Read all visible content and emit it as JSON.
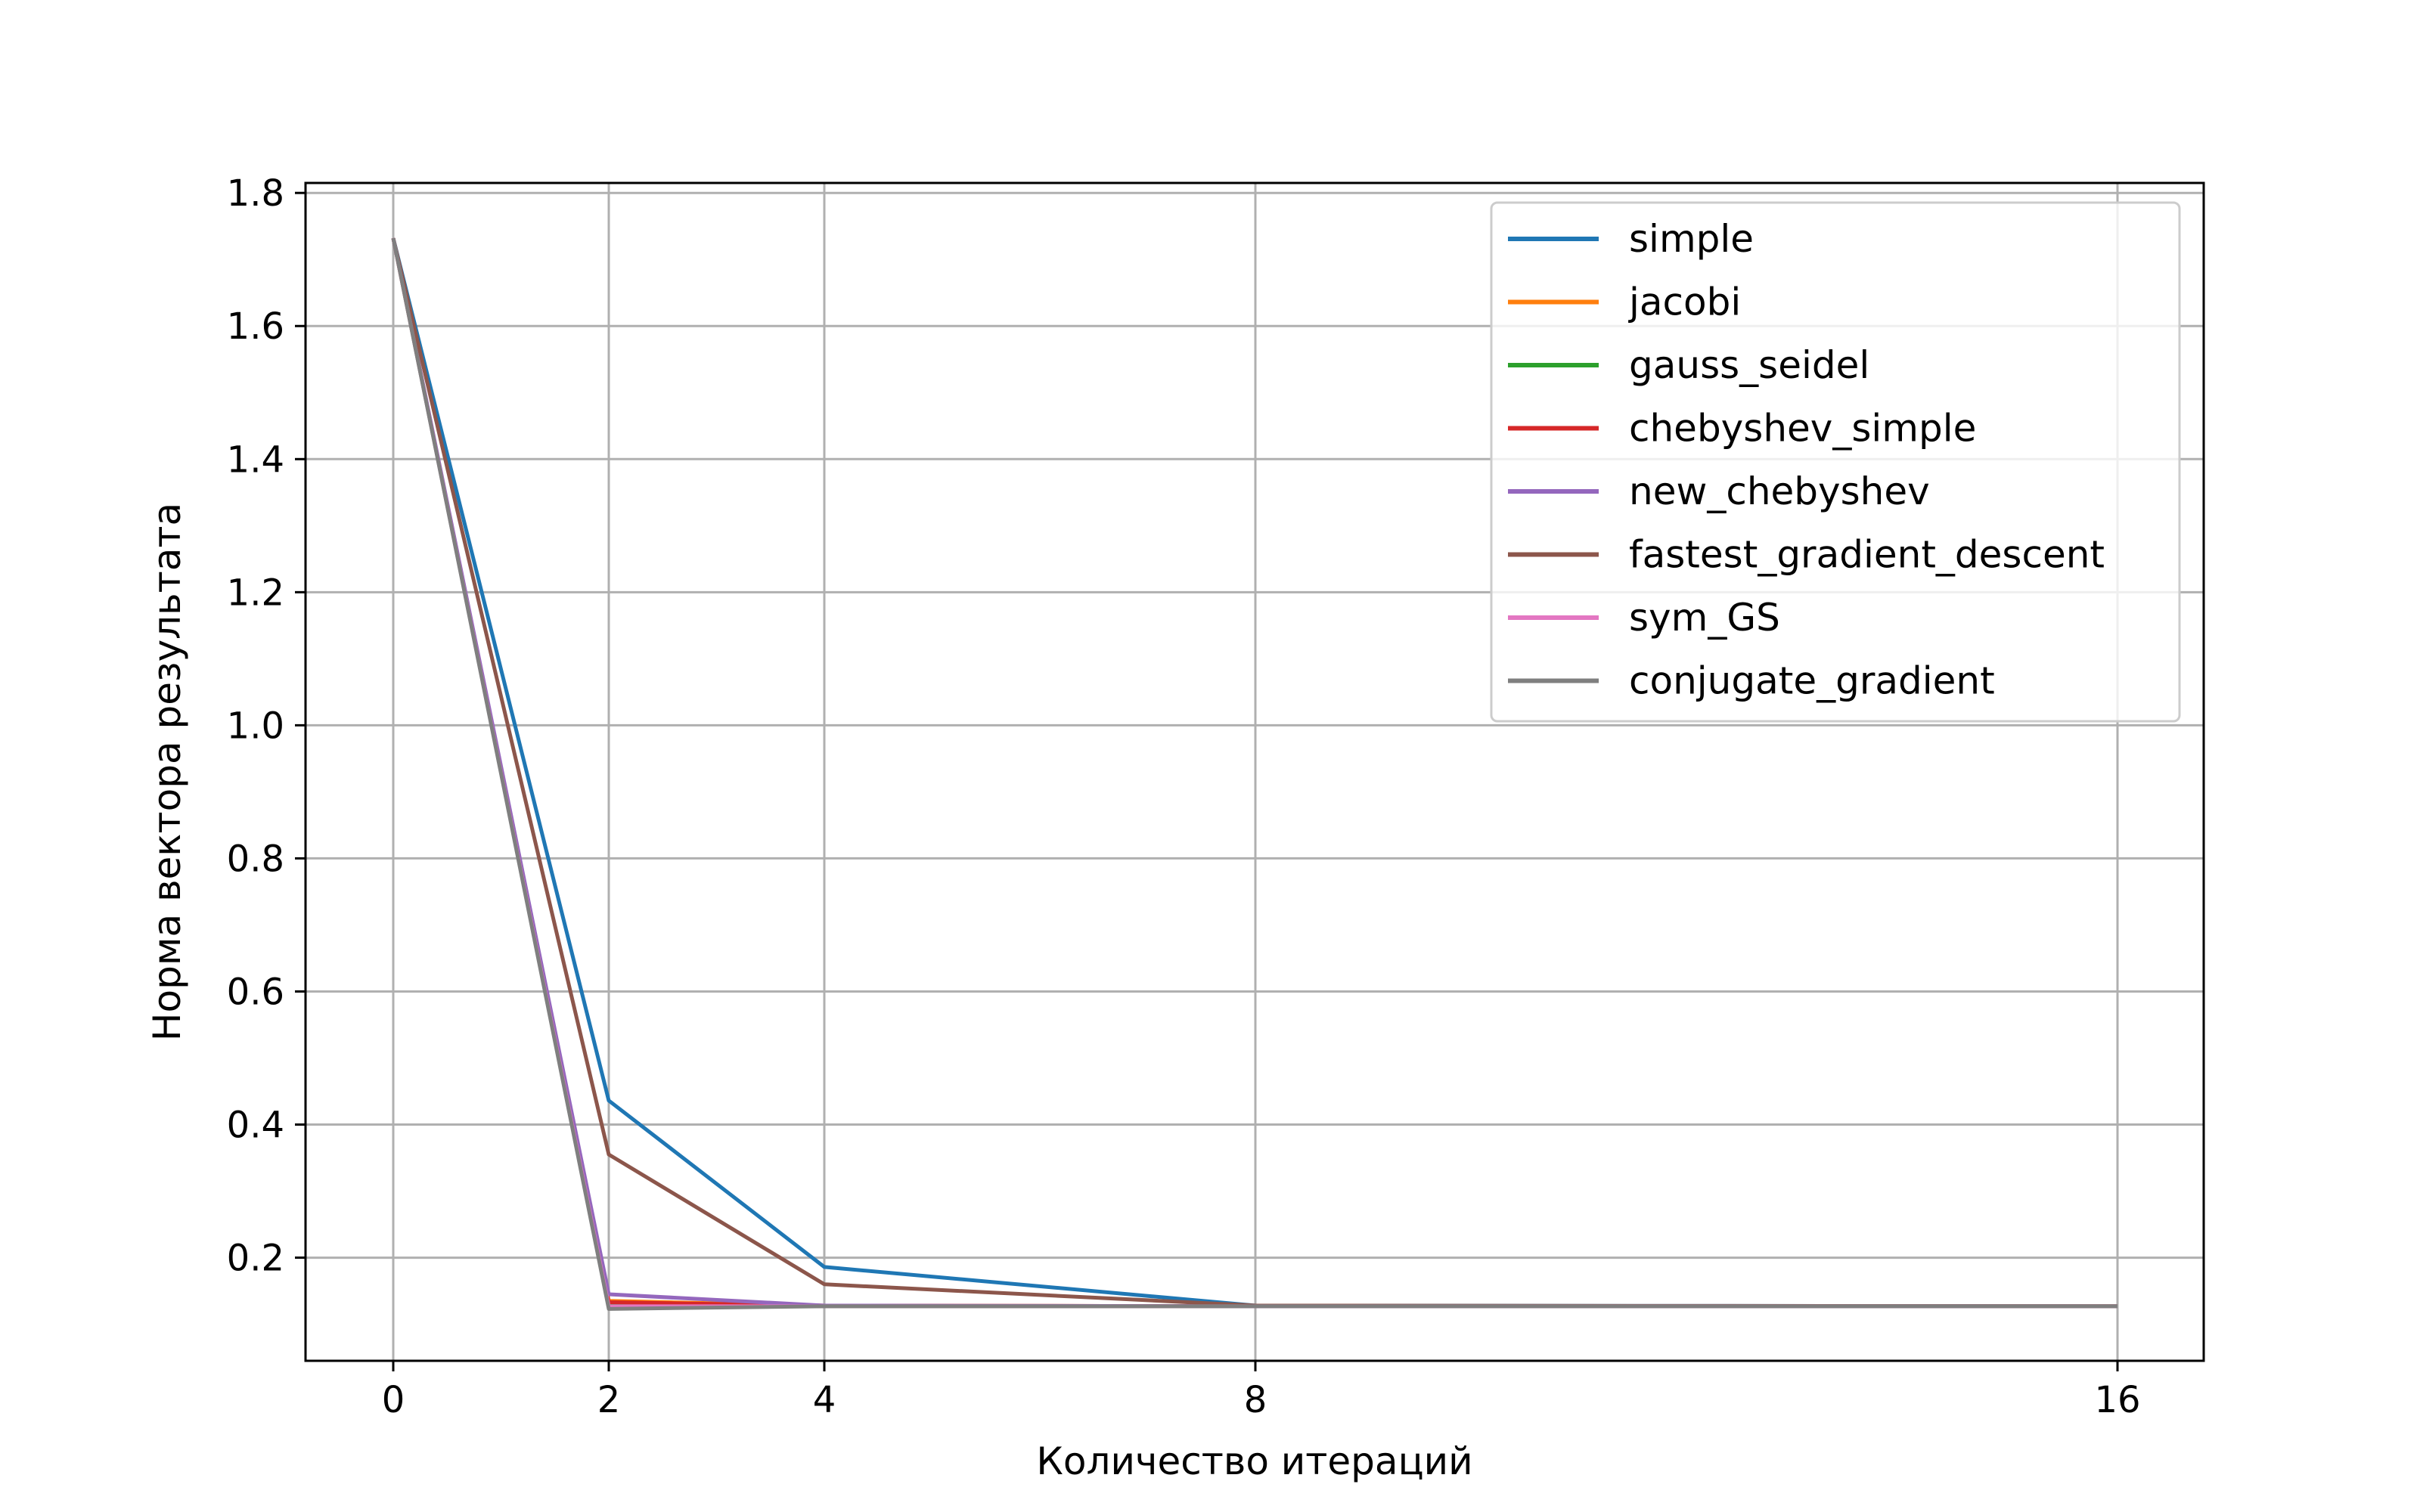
{
  "chart_data": {
    "type": "line",
    "title": "",
    "xlabel": "Количество итераций",
    "ylabel": "Норма вектора результата",
    "x_ticks": [
      0,
      2,
      4,
      8,
      16
    ],
    "x_tick_labels": [
      "0",
      "2",
      "4",
      "8",
      "16"
    ],
    "x_scale": "ordinal-like (0, 2, 4, 8, 16)",
    "y_ticks": [
      0.2,
      0.4,
      0.6,
      0.8,
      1.0,
      1.2,
      1.4,
      1.6,
      1.8
    ],
    "y_tick_labels": [
      "0.2",
      "0.4",
      "0.6",
      "0.8",
      "1.0",
      "1.2",
      "1.4",
      "1.6",
      "1.8"
    ],
    "ylim": [
      0.045,
      1.815
    ],
    "grid": true,
    "legend_position": "top-right",
    "series": [
      {
        "name": "simple",
        "color": "#1f77b4",
        "x": [
          0,
          2,
          4,
          8,
          16
        ],
        "y": [
          1.732,
          0.436,
          0.186,
          0.128,
          0.127
        ]
      },
      {
        "name": "jacobi",
        "color": "#ff7f0e",
        "x": [
          0,
          2,
          4,
          8,
          16
        ],
        "y": [
          1.732,
          0.135,
          0.128,
          0.127,
          0.127
        ]
      },
      {
        "name": "gauss_seidel",
        "color": "#2ca02c",
        "x": [
          0,
          2,
          4,
          8,
          16
        ],
        "y": [
          1.732,
          0.129,
          0.127,
          0.127,
          0.127
        ]
      },
      {
        "name": "chebyshev_simple",
        "color": "#d62728",
        "x": [
          0,
          2,
          4,
          8,
          16
        ],
        "y": [
          1.732,
          0.133,
          0.128,
          0.127,
          0.127
        ]
      },
      {
        "name": "new_chebyshev",
        "color": "#9467bd",
        "x": [
          0,
          2,
          4,
          8,
          16
        ],
        "y": [
          1.732,
          0.145,
          0.128,
          0.127,
          0.127
        ]
      },
      {
        "name": "fastest_gradient_descent",
        "color": "#8c564b",
        "x": [
          0,
          2,
          4,
          8,
          16
        ],
        "y": [
          1.732,
          0.355,
          0.16,
          0.128,
          0.127
        ]
      },
      {
        "name": "sym_GS",
        "color": "#e377c2",
        "x": [
          0,
          2,
          4,
          8,
          16
        ],
        "y": [
          1.732,
          0.127,
          0.127,
          0.127,
          0.127
        ]
      },
      {
        "name": "conjugate_gradient",
        "color": "#7f7f7f",
        "x": [
          0,
          2,
          4,
          8,
          16
        ],
        "y": [
          1.732,
          0.123,
          0.127,
          0.127,
          0.127
        ]
      }
    ]
  }
}
